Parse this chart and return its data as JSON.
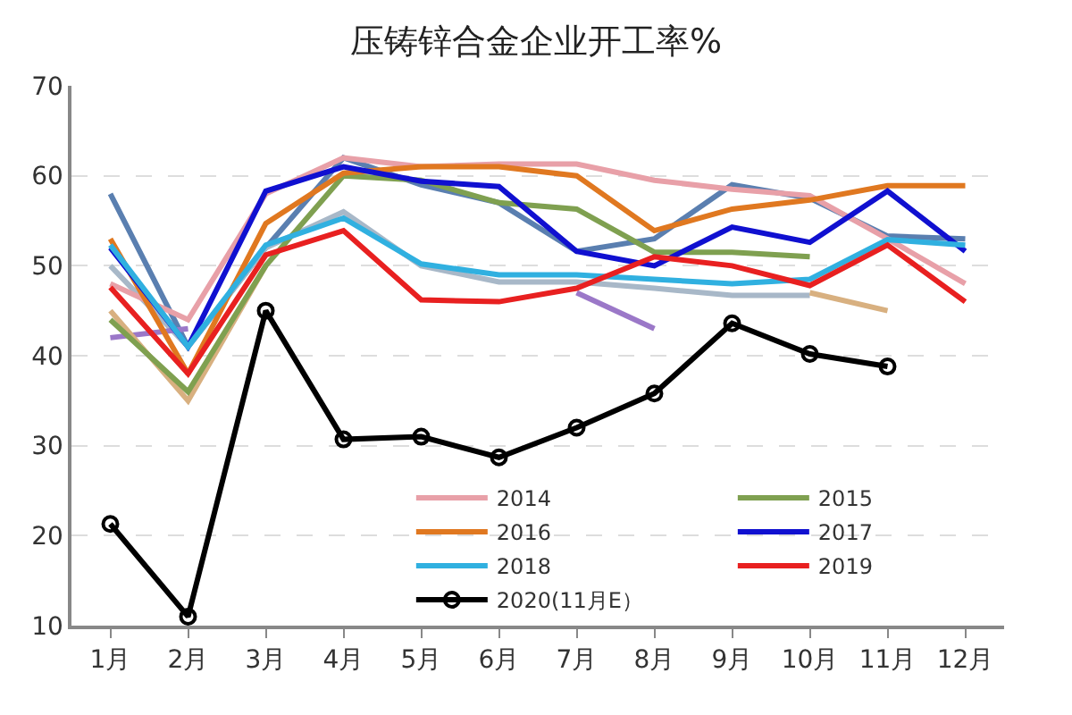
{
  "chart_data": {
    "type": "line",
    "title": "压铸锌合金企业开工率%",
    "categories": [
      "1月",
      "2月",
      "3月",
      "4月",
      "5月",
      "6月",
      "7月",
      "8月",
      "9月",
      "10月",
      "11月",
      "12月"
    ],
    "ylim": [
      10,
      70
    ],
    "yticks": [
      10,
      20,
      30,
      40,
      50,
      60,
      70
    ],
    "grid": "y",
    "legend": "bottom",
    "line_style": "solid",
    "marker": "none",
    "series": [
      {
        "color": "#5a7fb0",
        "values": [
          58,
          41,
          52,
          62,
          59,
          57,
          51.6,
          53,
          59,
          57.5,
          53.3,
          53
        ]
      },
      {
        "color": "#a8b8c8",
        "values": [
          50,
          41,
          52,
          56,
          50,
          48.2,
          48.2,
          47.5,
          46.7,
          46.7,
          null,
          null
        ]
      },
      {
        "color": "#9b78c8",
        "values": [
          42,
          43,
          null,
          null,
          null,
          null,
          47,
          43,
          null,
          null,
          null,
          null
        ]
      },
      {
        "color": "#d8b080",
        "values": [
          45,
          35,
          50,
          null,
          null,
          null,
          null,
          null,
          null,
          47,
          45,
          null
        ]
      },
      {
        "name": "2014",
        "color": "#e8a0a8",
        "values": [
          48,
          44,
          58,
          62,
          61,
          61.3,
          61.3,
          59.5,
          58.5,
          57.8,
          53,
          48
        ]
      },
      {
        "name": "2015",
        "color": "#7fa050",
        "values": [
          44,
          36,
          50,
          60,
          59.5,
          57,
          56.3,
          51.5,
          51.5,
          51,
          null,
          null
        ]
      },
      {
        "name": "2016",
        "color": "#e07820",
        "values": [
          53,
          38,
          54.7,
          60.3,
          61,
          61,
          60,
          53.9,
          56.3,
          57.3,
          58.9,
          58.9
        ]
      },
      {
        "name": "2017",
        "color": "#1010d0",
        "values": [
          52,
          41,
          58.3,
          61,
          59.4,
          58.8,
          51.6,
          50,
          54.3,
          52.6,
          58.3,
          51.6
        ]
      },
      {
        "name": "2018",
        "color": "#30b0e0",
        "values": [
          52.3,
          41,
          52.3,
          55.3,
          50.2,
          49,
          49,
          48.5,
          48,
          48.5,
          52.9,
          52.3
        ]
      },
      {
        "name": "2019",
        "color": "#e82020",
        "values": [
          47.6,
          38,
          51.2,
          53.9,
          46.2,
          46,
          47.5,
          51,
          50,
          47.8,
          52.3,
          46
        ]
      },
      {
        "name": "2020(11月E）",
        "color": "#000000",
        "marker": "circle",
        "values": [
          21.3,
          11,
          45,
          30.7,
          31,
          28.7,
          32,
          35.8,
          43.6,
          40.2,
          38.8,
          null
        ]
      }
    ]
  }
}
